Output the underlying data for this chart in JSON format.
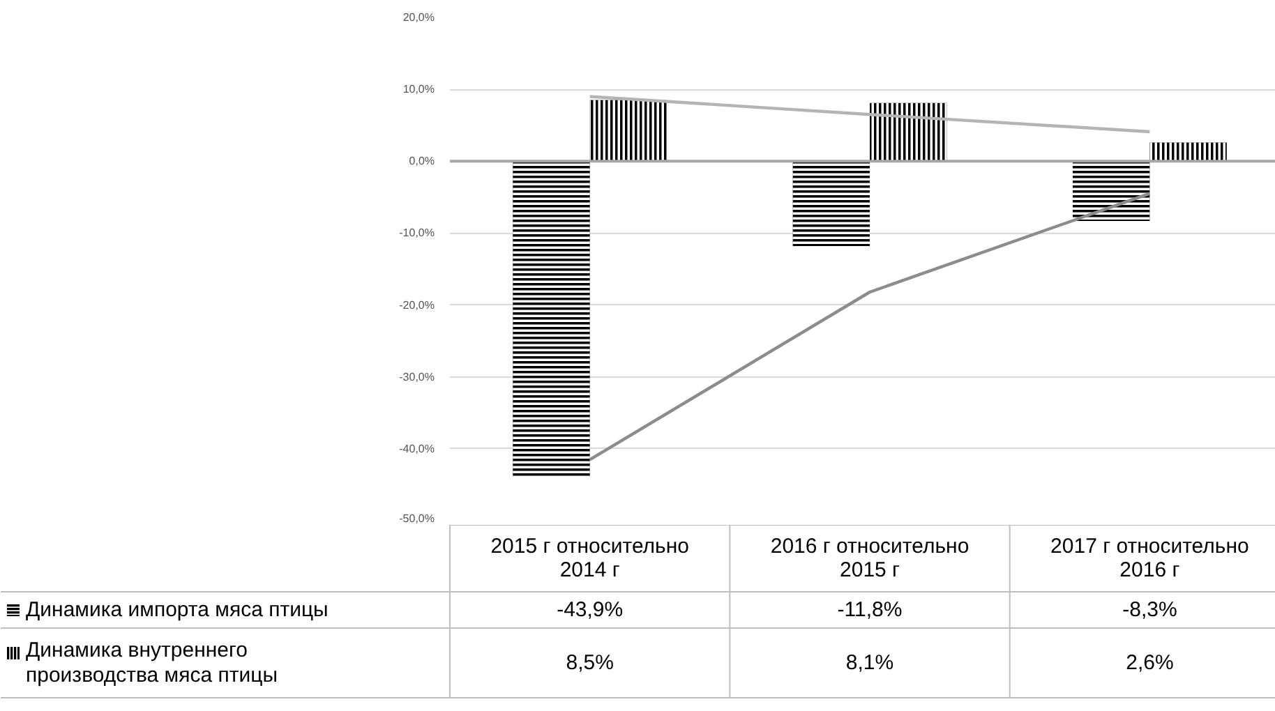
{
  "chart_data": {
    "type": "bar",
    "categories": [
      "2015 г относительно\n2014 г",
      "2016 г относительно\n2015 г",
      "2017 г относительно\n2016 г"
    ],
    "series": [
      {
        "name": "Динамика  импорта  мяса птицы",
        "color": "#000000",
        "values": [
          -43.9,
          -11.8,
          -8.3
        ],
        "value_labels": [
          "-43,9%",
          "-11,8%",
          "-8,3%"
        ]
      },
      {
        "name": "Динамика  внутреннего\nпроизводства мяса птицы",
        "color": "#000000",
        "values": [
          8.5,
          8.1,
          2.6
        ],
        "value_labels": [
          "8,5%",
          "8,1%",
          "2,6%"
        ]
      },
      {
        "type": "line",
        "color": "#8c8c8c",
        "values": [
          -41.5,
          -18.2,
          -4.5
        ]
      },
      {
        "type": "line",
        "color": "#b4b4b4",
        "values": [
          9.0,
          6.5,
          4.1
        ]
      }
    ],
    "ylim": [
      -50,
      20
    ],
    "yticks": [
      {
        "value": -50,
        "label": "-50,0%"
      },
      {
        "value": -40,
        "label": "-40,0%"
      },
      {
        "value": -30,
        "label": "-30,0%"
      },
      {
        "value": -20,
        "label": "-20,0%"
      },
      {
        "value": -10,
        "label": "-10,0%"
      },
      {
        "value": 0,
        "label": "0,0%"
      },
      {
        "value": 10,
        "label": "10,0%"
      },
      {
        "value": 20,
        "label": "20,0%"
      }
    ],
    "grid": "y",
    "legend": "bottom left"
  }
}
